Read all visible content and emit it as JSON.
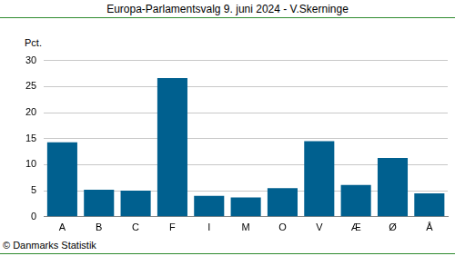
{
  "chart_data": {
    "type": "bar",
    "title": "Europa-Parlamentsvalg 9. juni 2024 - V.Skerninge",
    "ylabel": "Pct.",
    "footer": "© Danmarks Statistik",
    "categories": [
      "A",
      "B",
      "C",
      "F",
      "I",
      "M",
      "O",
      "V",
      "Æ",
      "Ø",
      "Å"
    ],
    "values": [
      14.3,
      5.2,
      5.0,
      26.6,
      4.0,
      3.7,
      5.5,
      14.5,
      6.1,
      11.3,
      4.5
    ],
    "color": "#00608f",
    "ylim": [
      0,
      30
    ],
    "yticks": [
      0,
      5,
      10,
      15,
      20,
      25,
      30
    ],
    "grid": true
  }
}
